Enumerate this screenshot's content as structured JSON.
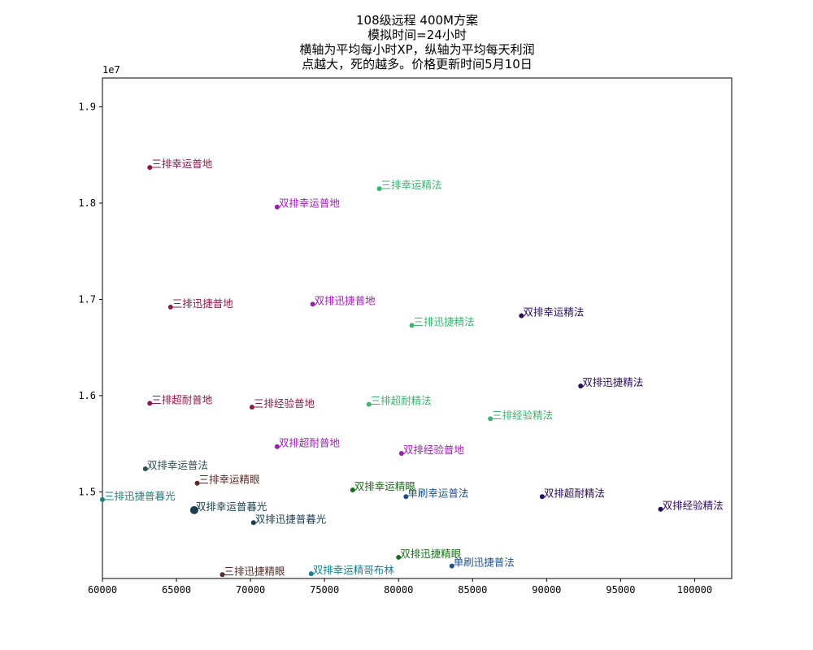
{
  "chart_data": {
    "type": "scatter",
    "title_lines": [
      "108级远程 400M方案",
      "模拟时间=24小时",
      "横轴为平均每小时XP，纵轴为平均每天利润",
      "点越大，死的越多。价格更新时间5月10日"
    ],
    "xlabel": "",
    "ylabel": "",
    "y_offset_label": "1e7",
    "xlim": [
      60000,
      102500
    ],
    "ylim": [
      14100000,
      19300000
    ],
    "x_ticks": [
      60000,
      65000,
      70000,
      75000,
      80000,
      85000,
      90000,
      95000,
      100000
    ],
    "x_tick_labels": [
      "60000",
      "65000",
      "70000",
      "75000",
      "80000",
      "85000",
      "90000",
      "95000",
      "100000"
    ],
    "y_ticks": [
      15000000,
      16000000,
      17000000,
      18000000,
      19000000
    ],
    "y_tick_labels": [
      "1.5",
      "1.6",
      "1.7",
      "1.8",
      "1.9"
    ],
    "grid": false,
    "points": [
      {
        "label": "三排幸运普地",
        "x": 63200,
        "y": 18370000,
        "color": "#8b1a4a",
        "size": 3
      },
      {
        "label": "三排幸运精法",
        "x": 78700,
        "y": 18150000,
        "color": "#3cb371",
        "size": 3
      },
      {
        "label": "双排幸运普地",
        "x": 71800,
        "y": 17960000,
        "color": "#9a1fb0",
        "size": 3
      },
      {
        "label": "三排迅捷普地",
        "x": 64600,
        "y": 16920000,
        "color": "#8b1a4a",
        "size": 3
      },
      {
        "label": "双排迅捷普地",
        "x": 74200,
        "y": 16950000,
        "color": "#9a1fb0",
        "size": 3
      },
      {
        "label": "三排迅捷精法",
        "x": 80900,
        "y": 16730000,
        "color": "#3cb371",
        "size": 3
      },
      {
        "label": "双排幸运精法",
        "x": 88300,
        "y": 16830000,
        "color": "#2a0a5a",
        "size": 3
      },
      {
        "label": "双排迅捷精法",
        "x": 92300,
        "y": 16100000,
        "color": "#2a0a5a",
        "size": 3
      },
      {
        "label": "三排超耐普地",
        "x": 63200,
        "y": 15920000,
        "color": "#8b1a4a",
        "size": 3
      },
      {
        "label": "三排经验普地",
        "x": 70100,
        "y": 15880000,
        "color": "#8b1a4a",
        "size": 3
      },
      {
        "label": "三排超耐精法",
        "x": 78000,
        "y": 15910000,
        "color": "#3cb371",
        "size": 3
      },
      {
        "label": "三排经验精法",
        "x": 86200,
        "y": 15760000,
        "color": "#3cb371",
        "size": 3
      },
      {
        "label": "双排超耐普地",
        "x": 71800,
        "y": 15470000,
        "color": "#9a1fb0",
        "size": 3
      },
      {
        "label": "双排经验普地",
        "x": 80200,
        "y": 15400000,
        "color": "#9a1fb0",
        "size": 3
      },
      {
        "label": "双排幸运普法",
        "x": 62900,
        "y": 15240000,
        "color": "#2f4f4f",
        "size": 3
      },
      {
        "label": "三排幸运精眼",
        "x": 66400,
        "y": 15090000,
        "color": "#5a2a2a",
        "size": 3
      },
      {
        "label": "双排幸运精眼",
        "x": 76900,
        "y": 15020000,
        "color": "#1e6b1e",
        "size": 3
      },
      {
        "label": "单刷幸运普法",
        "x": 80500,
        "y": 14950000,
        "color": "#1f4e8c",
        "size": 3
      },
      {
        "label": "双排超耐精法",
        "x": 89700,
        "y": 14950000,
        "color": "#2a0a5a",
        "size": 3
      },
      {
        "label": "双排经验精法",
        "x": 97700,
        "y": 14820000,
        "color": "#2a0a5a",
        "size": 3
      },
      {
        "label": "三排迅捷普暮光",
        "x": 60000,
        "y": 14920000,
        "color": "#1a7f7f",
        "size": 3
      },
      {
        "label": "双排幸运普暮光",
        "x": 66200,
        "y": 14810000,
        "color": "#1a3f4f",
        "size": 5
      },
      {
        "label": "双排迅捷普暮光",
        "x": 70200,
        "y": 14680000,
        "color": "#1a3f4f",
        "size": 3
      },
      {
        "label": "双排迅捷精眼",
        "x": 80000,
        "y": 14320000,
        "color": "#1e6b1e",
        "size": 3
      },
      {
        "label": "单刷迅捷普法",
        "x": 83600,
        "y": 14230000,
        "color": "#1f4e8c",
        "size": 3
      },
      {
        "label": "三排迅捷精眼",
        "x": 68100,
        "y": 14140000,
        "color": "#5a2a2a",
        "size": 3
      },
      {
        "label": "双排幸运精哥布林",
        "x": 74100,
        "y": 14150000,
        "color": "#1a7f8f",
        "size": 3
      }
    ]
  }
}
